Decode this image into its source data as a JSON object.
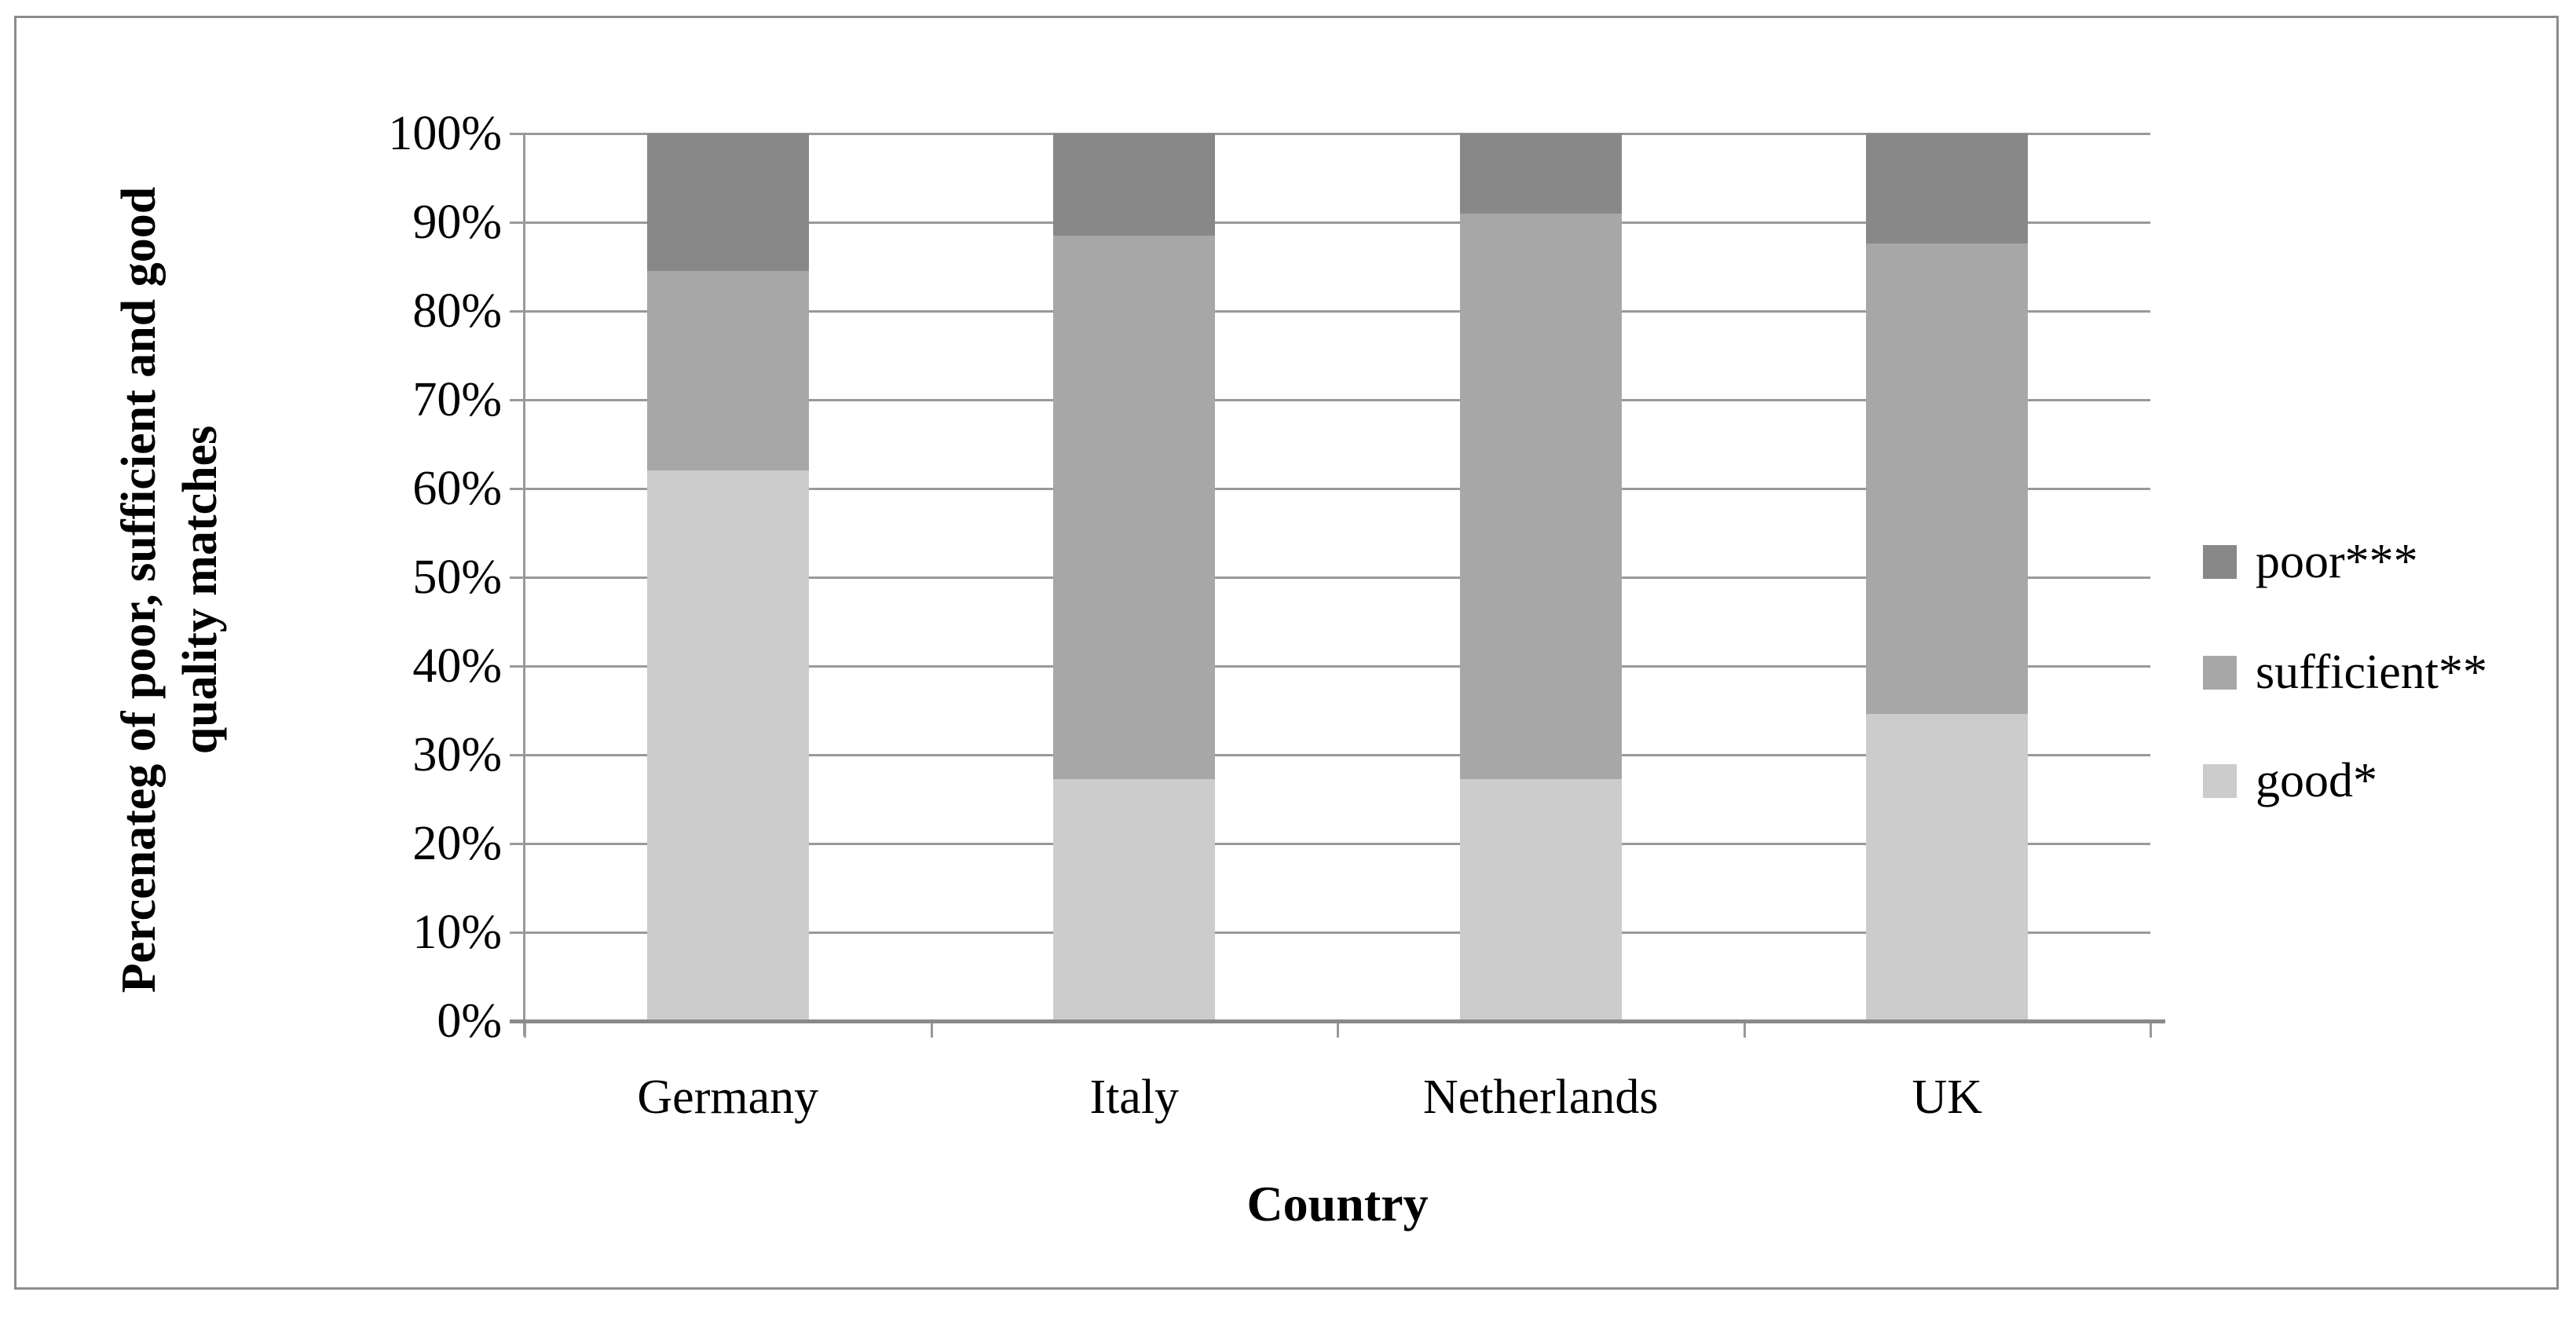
{
  "chart_data": {
    "type": "bar",
    "stacked": true,
    "percent_stacked": true,
    "title": "",
    "xlabel": "Country",
    "ylabel": "Percenateg of poor, sufficient and good quality matches",
    "ylabel_lines": [
      "Percenateg of poor, sufficient and good",
      "quality matches"
    ],
    "categories": [
      "Germany",
      "Italy",
      "Netherlands",
      "UK"
    ],
    "series": [
      {
        "name": "good*",
        "color": "#cccccc",
        "values": [
          62.0,
          27.3,
          27.3,
          34.6
        ]
      },
      {
        "name": "sufficient**",
        "color": "#a7a7a7",
        "values": [
          22.5,
          61.2,
          63.7,
          53.0
        ]
      },
      {
        "name": "poor***",
        "color": "#888888",
        "values": [
          15.5,
          11.5,
          9.0,
          12.4
        ]
      }
    ],
    "y_ticks": [
      "100%",
      "90%",
      "80%",
      "70%",
      "60%",
      "50%",
      "40%",
      "30%",
      "20%",
      "10%",
      "0%"
    ],
    "ylim": [
      0,
      100
    ],
    "grid": true,
    "legend_position": "right",
    "legend_order": [
      "poor***",
      "sufficient**",
      "good*"
    ],
    "colors": {
      "poor": "#888888",
      "sufficient": "#a7a7a7",
      "good": "#cccccc",
      "gridline": "#999999",
      "axis": "#8a8a8a",
      "frame_border": "#8c8c8c",
      "background": "#ffffff"
    }
  }
}
